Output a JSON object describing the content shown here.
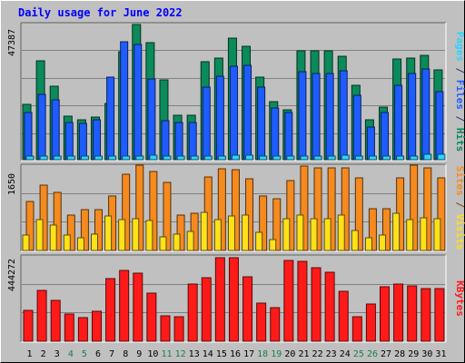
{
  "chart_data": {
    "type": "bar",
    "title": "Daily usage for June 2022",
    "categories": [
      "1",
      "2",
      "3",
      "4",
      "5",
      "6",
      "7",
      "8",
      "9",
      "10",
      "11",
      "12",
      "13",
      "14",
      "15",
      "16",
      "17",
      "18",
      "19",
      "20",
      "21",
      "22",
      "23",
      "24",
      "25",
      "26",
      "27",
      "28",
      "29",
      "30",
      "31"
    ],
    "weekend_days": [
      "4",
      "5",
      "11",
      "12",
      "18",
      "19",
      "25",
      "26"
    ],
    "colors": {
      "hits": "#0b8a5a",
      "files": "#1f5cff",
      "pages": "#2ad4ff",
      "visits": "#f58a1f",
      "sites": "#ffe01a",
      "kbytes": "#ff1a1a",
      "title": "#0000ff",
      "weekend_label": "#1a7f4a"
    },
    "panels": [
      {
        "name": "hits-files-pages",
        "max_label": "47387",
        "ymax": 47387,
        "legend": [
          {
            "text": "Pages",
            "color": "#2ad4ff"
          },
          {
            "text": " / ",
            "color": "#1f3a8a"
          },
          {
            "text": "Files",
            "color": "#1f5cff"
          },
          {
            "text": " / ",
            "color": "#1f3a8a"
          },
          {
            "text": "Hits",
            "color": "#0b8a5a"
          }
        ],
        "series": [
          {
            "name": "Hits",
            "values": [
              19400,
              34500,
              25600,
              15200,
              13800,
              14800,
              19700,
              37500,
              47200,
              40800,
              27800,
              15600,
              15600,
              34200,
              35400,
              42300,
              39600,
              28800,
              20200,
              17400,
              37800,
              37800,
              37800,
              36000,
              25800,
              13800,
              18200,
              35000,
              35400,
              36200,
              31200
            ]
          },
          {
            "name": "Files",
            "values": [
              16400,
              22800,
              21000,
              13100,
              12500,
              13800,
              28900,
              41200,
              40200,
              28000,
              13500,
              13100,
              13100,
              25400,
              29000,
              32500,
              33000,
              25400,
              17900,
              16400,
              30500,
              30100,
              30100,
              31000,
              22400,
              11500,
              16400,
              26000,
              30100,
              31600,
              23800
            ]
          },
          {
            "name": "Pages",
            "values": [
              1100,
              1100,
              1100,
              1200,
              1100,
              1200,
              1100,
              1400,
              1400,
              1500,
              1100,
              1100,
              1100,
              1300,
              1300,
              1500,
              1500,
              1300,
              1200,
              1100,
              1200,
              1200,
              1200,
              1500,
              1200,
              1100,
              1100,
              1200,
              1200,
              1900,
              1900
            ]
          }
        ]
      },
      {
        "name": "visits-sites",
        "max_label": "1650",
        "ymax": 1650,
        "legend": [
          {
            "text": "Sites",
            "color": "#f58a1f"
          },
          {
            "text": " / ",
            "color": "#7a4a00"
          },
          {
            "text": "Visits",
            "color": "#ffe01a"
          }
        ],
        "series": [
          {
            "name": "Visits",
            "values": [
              940,
              1270,
              1130,
              690,
              790,
              790,
              1050,
              1480,
              1650,
              1520,
              1320,
              680,
              720,
              1430,
              1580,
              1560,
              1380,
              1060,
              1000,
              1360,
              1630,
              1590,
              1590,
              1600,
              1400,
              810,
              810,
              1400,
              1650,
              1600,
              1400
            ]
          },
          {
            "name": "Sites",
            "values": [
              290,
              590,
              490,
              300,
              250,
              310,
              670,
              590,
              610,
              580,
              260,
              320,
              360,
              730,
              600,
              660,
              680,
              350,
              210,
              620,
              680,
              620,
              620,
              690,
              380,
              240,
              300,
              720,
              590,
              640,
              620
            ]
          }
        ]
      },
      {
        "name": "kbytes",
        "max_label": "444272",
        "ymax": 444272,
        "legend": [
          {
            "text": "KBytes",
            "color": "#ff1a1a"
          }
        ],
        "series": [
          {
            "name": "KBytes",
            "values": [
              160000,
              264000,
              215000,
              140000,
              125000,
              155000,
              325000,
              370000,
              355000,
              250000,
              132000,
              127000,
              300000,
              330000,
              435000,
              435000,
              335000,
              198000,
              176000,
              423000,
              414000,
              384000,
              357000,
              262000,
              126000,
              195000,
              285000,
              300000,
              290000,
              272000,
              272000
            ]
          }
        ]
      }
    ]
  }
}
